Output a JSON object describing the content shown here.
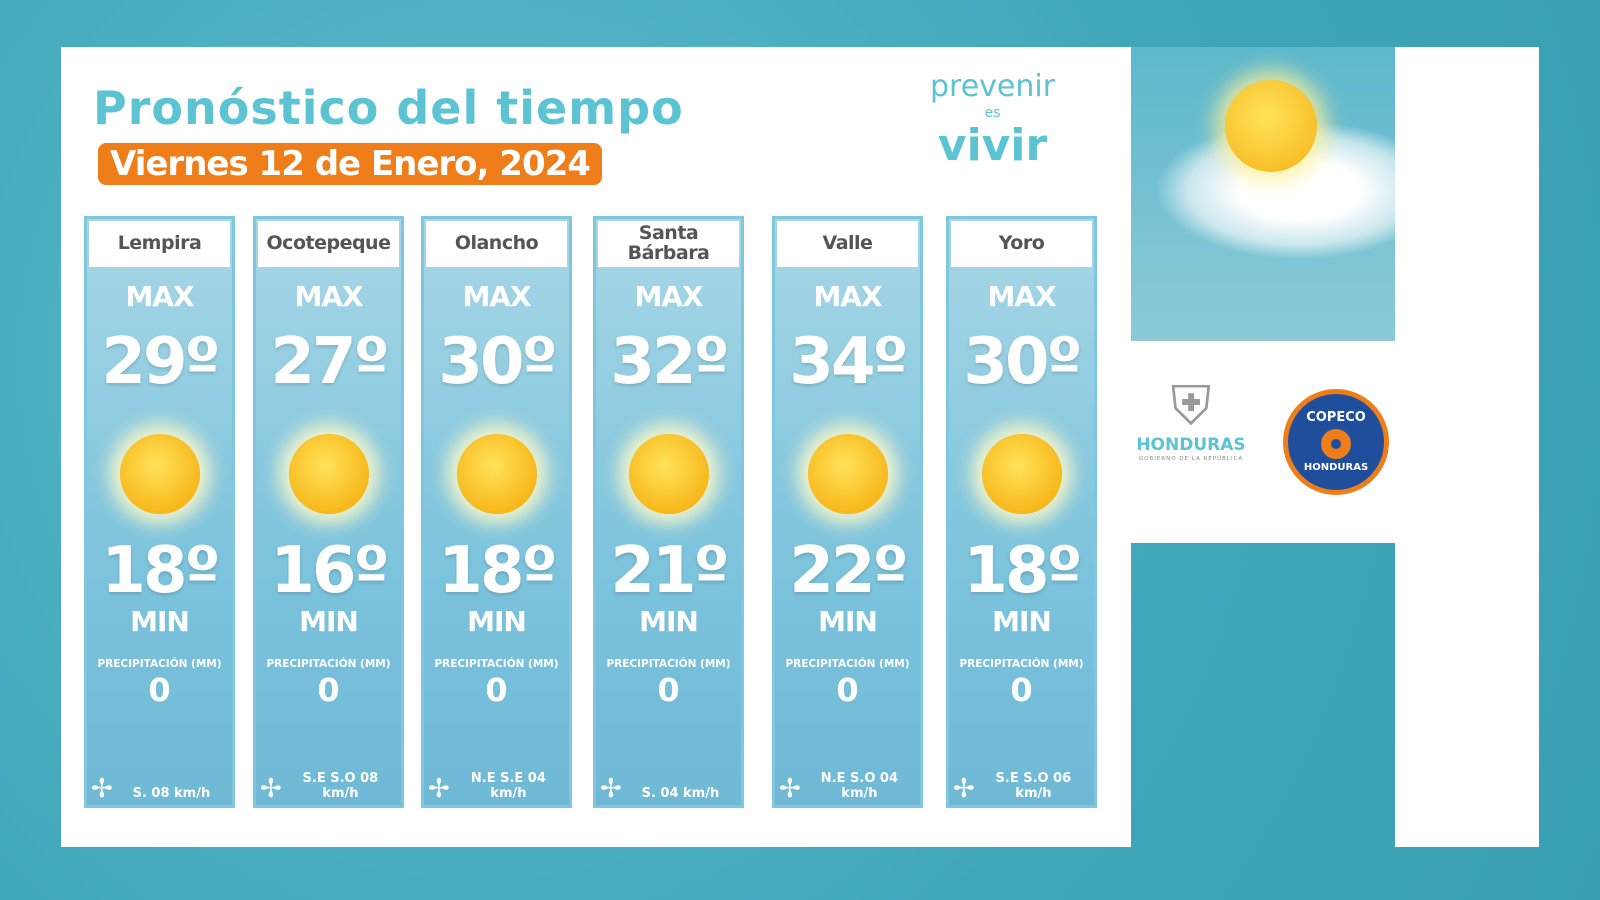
{
  "header": {
    "title": "Pronóstico del tiempo",
    "date": "Viernes 12 de Enero, 2024"
  },
  "brand": {
    "line1": "prevenir",
    "line2": "es",
    "line3": "vivir"
  },
  "labels": {
    "max": "MAX",
    "min": "MIN",
    "precip": "PRECIPITACIÓN (MM)"
  },
  "icons": {
    "weather": "sun-icon",
    "wind": "pinwheel-wind-icon"
  },
  "cards": [
    {
      "city": "Lempira",
      "max": "29º",
      "min": "18º",
      "precip": "0",
      "wind": "S.  08 km/h"
    },
    {
      "city": "Ocotepeque",
      "max": "27º",
      "min": "16º",
      "precip": "0",
      "wind": "S.E  S.O 08 km/h"
    },
    {
      "city": "Olancho",
      "max": "30º",
      "min": "18º",
      "precip": "0",
      "wind": "N.E  S.E  04 km/h"
    },
    {
      "city": "Santa Bárbara",
      "max": "32º",
      "min": "21º",
      "precip": "0",
      "wind": "S.  04 km/h"
    },
    {
      "city": "Valle",
      "max": "34º",
      "min": "22º",
      "precip": "0",
      "wind": "N.E  S.O  04 km/h"
    },
    {
      "city": "Yoro",
      "max": "30º",
      "min": "18º",
      "precip": "0",
      "wind": "S.E  S.O 06 km/h"
    }
  ],
  "logos": {
    "honduras": "HONDURAS",
    "honduras_sub": "GOBIERNO DE LA REPÚBLICA",
    "copeco_top": "COPECO",
    "copeco_bottom": "HONDURAS"
  },
  "colors": {
    "title": "#5cc3d3",
    "date_bg": "#ee7d1a",
    "card": "#7cc3dc",
    "background": "#3fa6b9"
  }
}
